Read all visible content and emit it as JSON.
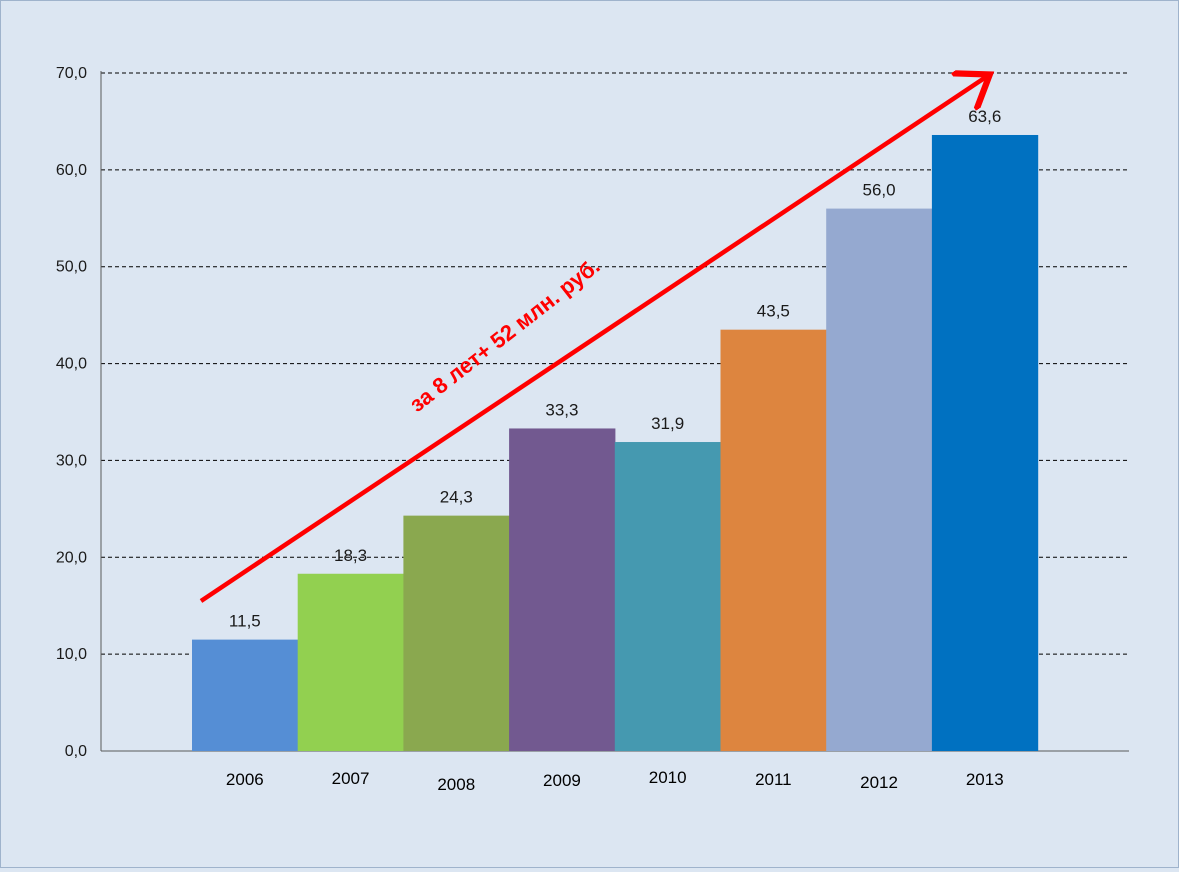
{
  "chart_data": {
    "type": "bar",
    "categories": [
      "2006",
      "2007",
      "2008",
      "2009",
      "2010",
      "2011",
      "2012",
      "2013"
    ],
    "values": [
      11.5,
      18.3,
      24.3,
      33.3,
      31.9,
      43.5,
      56.0,
      63.6
    ],
    "value_labels": [
      "11,5",
      "18,3",
      "24,3",
      "33,3",
      "31,9",
      "43,5",
      "56,0",
      "63,6"
    ],
    "bar_colors": [
      "#558ed5",
      "#92d050",
      "#8aa84f",
      "#725990",
      "#4599b0",
      "#dd853f",
      "#95a9d0",
      "#0071c1"
    ],
    "ylim": [
      0,
      70
    ],
    "yticks": [
      0,
      10,
      20,
      30,
      40,
      50,
      60,
      70
    ],
    "ytick_labels": [
      "0,0",
      "10,0",
      "20,0",
      "30,0",
      "40,0",
      "50,0",
      "60,0",
      "70,0"
    ],
    "grid": "dashed horizontal",
    "annotation": {
      "text": "за 8 лет+ 52 млн. руб.",
      "color": "#ff0000"
    }
  }
}
